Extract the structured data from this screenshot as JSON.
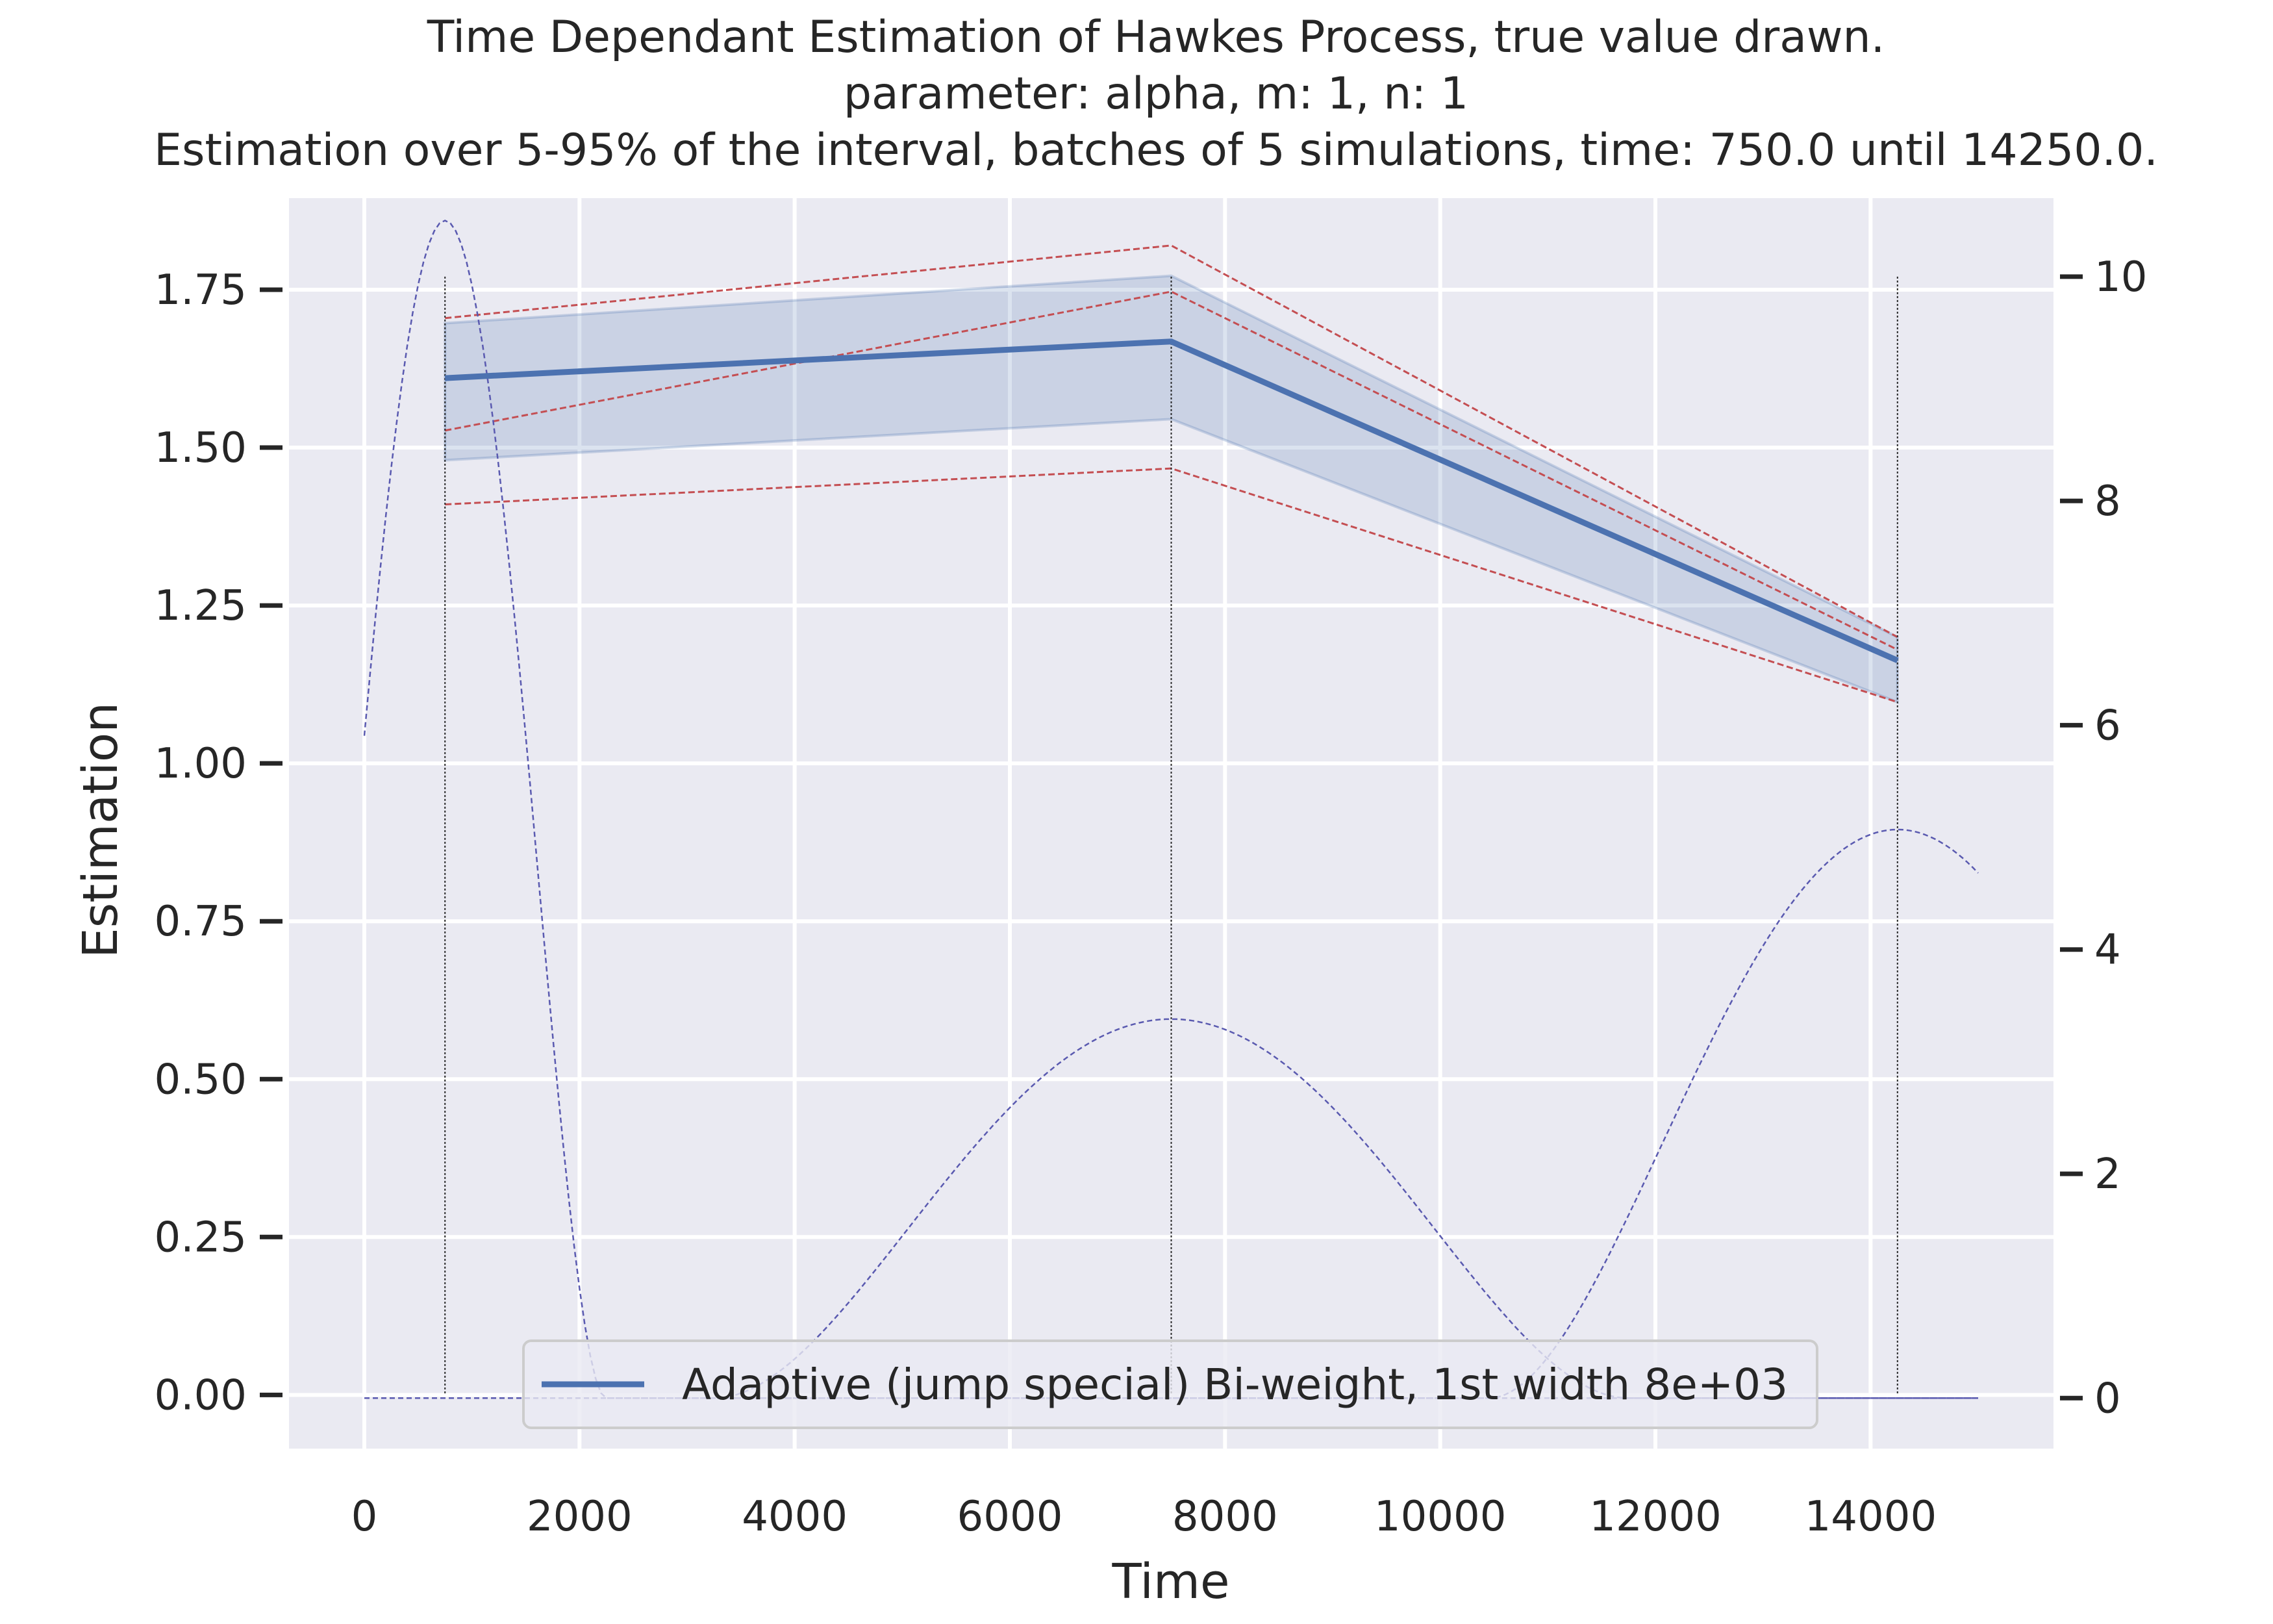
{
  "chart_data": {
    "type": "line",
    "title_lines": [
      "Time Dependant Estimation of Hawkes Process, true value drawn.",
      "parameter: alpha, m: 1, n: 1",
      "Estimation over 5-95% of the interval, batches of 5 simulations, time: 750.0 until 14250.0."
    ],
    "xlabel": "Time",
    "ylabel": "Estimation",
    "xlim": [
      -700,
      15700
    ],
    "ylim": [
      -0.085,
      1.895
    ],
    "y2lim": [
      -0.45,
      10.7
    ],
    "grid": true,
    "x_ticks": [
      0,
      2000,
      4000,
      6000,
      8000,
      10000,
      12000,
      14000
    ],
    "x_tick_labels": [
      "0",
      "2000",
      "4000",
      "6000",
      "8000",
      "10000",
      "12000",
      "14000"
    ],
    "y_ticks": [
      0.0,
      0.25,
      0.5,
      0.75,
      1.0,
      1.25,
      1.5,
      1.75
    ],
    "y_tick_labels": [
      "0.00",
      "0.25",
      "0.50",
      "0.75",
      "1.00",
      "1.25",
      "1.50",
      "1.75"
    ],
    "y2_ticks": [
      0,
      2,
      4,
      6,
      8,
      10
    ],
    "y2_tick_labels": [
      "0",
      "2",
      "4",
      "6",
      "8",
      "10"
    ],
    "estimation_times": [
      750,
      7500,
      14250
    ],
    "series": [
      {
        "name": "Adaptive (jump special) Bi-weight, 1st width 8e+03",
        "x": [
          750,
          7500,
          14250
        ],
        "y": [
          1.61,
          1.668,
          1.163
        ],
        "band_lower": [
          1.48,
          1.545,
          1.097
        ],
        "band_upper": [
          1.697,
          1.772,
          1.2
        ],
        "color": "#4c72b0"
      }
    ],
    "reference_lines": [
      {
        "x": [
          750,
          7500,
          14250
        ],
        "y": [
          1.705,
          1.82,
          1.2
        ],
        "color": "#c44e52"
      },
      {
        "x": [
          750,
          7500,
          14250
        ],
        "y": [
          1.527,
          1.747,
          1.18
        ],
        "color": "#c44e52"
      },
      {
        "x": [
          750,
          7500,
          14250
        ],
        "y": [
          1.41,
          1.467,
          1.097
        ],
        "color": "#c44e52"
      }
    ],
    "kernel_curves": [
      {
        "axis": "right",
        "center": 750,
        "half_width": 1500,
        "peak": 10.5,
        "color": "#5a5ab0"
      },
      {
        "axis": "right",
        "center": 7500,
        "half_width": 4250,
        "peak": 3.38,
        "color": "#5a5ab0"
      },
      {
        "axis": "right",
        "center": 14250,
        "half_width": 3800,
        "peak": 5.07,
        "color": "#5a5ab0"
      }
    ],
    "kernel_x_range": [
      0,
      15000
    ],
    "legend": {
      "placement": "lower center"
    },
    "colors": {
      "background": "#eaeaf2",
      "grid": "#ffffff",
      "main_line": "#4c72b0",
      "band": "#4c72b0",
      "reference": "#c44e52",
      "kernel": "#5a5ab0",
      "vlines": "#222222",
      "text": "#262626"
    }
  }
}
